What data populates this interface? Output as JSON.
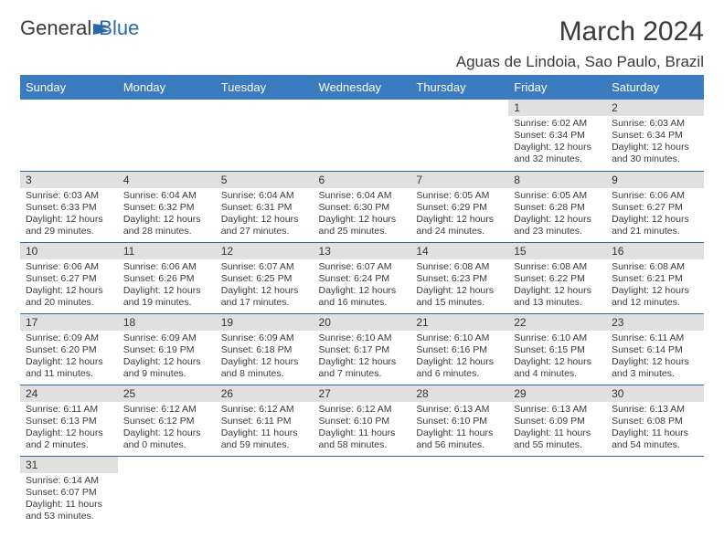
{
  "logo": {
    "general": "General",
    "blue": "Blue"
  },
  "title": "March 2024",
  "location": "Aguas de Lindoia, Sao Paulo, Brazil",
  "colors": {
    "header_bg": "#3b7bbf",
    "header_text": "#ffffff",
    "daybar_bg": "#e0e0e0",
    "border": "#2f6aa8",
    "logo_blue": "#2a6aa8",
    "text": "#3a3a3a"
  },
  "weekdays": [
    "Sunday",
    "Monday",
    "Tuesday",
    "Wednesday",
    "Thursday",
    "Friday",
    "Saturday"
  ],
  "weeks": [
    [
      null,
      null,
      null,
      null,
      null,
      {
        "n": "1",
        "sunrise": "Sunrise: 6:02 AM",
        "sunset": "Sunset: 6:34 PM",
        "daylight1": "Daylight: 12 hours",
        "daylight2": "and 32 minutes."
      },
      {
        "n": "2",
        "sunrise": "Sunrise: 6:03 AM",
        "sunset": "Sunset: 6:34 PM",
        "daylight1": "Daylight: 12 hours",
        "daylight2": "and 30 minutes."
      }
    ],
    [
      {
        "n": "3",
        "sunrise": "Sunrise: 6:03 AM",
        "sunset": "Sunset: 6:33 PM",
        "daylight1": "Daylight: 12 hours",
        "daylight2": "and 29 minutes."
      },
      {
        "n": "4",
        "sunrise": "Sunrise: 6:04 AM",
        "sunset": "Sunset: 6:32 PM",
        "daylight1": "Daylight: 12 hours",
        "daylight2": "and 28 minutes."
      },
      {
        "n": "5",
        "sunrise": "Sunrise: 6:04 AM",
        "sunset": "Sunset: 6:31 PM",
        "daylight1": "Daylight: 12 hours",
        "daylight2": "and 27 minutes."
      },
      {
        "n": "6",
        "sunrise": "Sunrise: 6:04 AM",
        "sunset": "Sunset: 6:30 PM",
        "daylight1": "Daylight: 12 hours",
        "daylight2": "and 25 minutes."
      },
      {
        "n": "7",
        "sunrise": "Sunrise: 6:05 AM",
        "sunset": "Sunset: 6:29 PM",
        "daylight1": "Daylight: 12 hours",
        "daylight2": "and 24 minutes."
      },
      {
        "n": "8",
        "sunrise": "Sunrise: 6:05 AM",
        "sunset": "Sunset: 6:28 PM",
        "daylight1": "Daylight: 12 hours",
        "daylight2": "and 23 minutes."
      },
      {
        "n": "9",
        "sunrise": "Sunrise: 6:06 AM",
        "sunset": "Sunset: 6:27 PM",
        "daylight1": "Daylight: 12 hours",
        "daylight2": "and 21 minutes."
      }
    ],
    [
      {
        "n": "10",
        "sunrise": "Sunrise: 6:06 AM",
        "sunset": "Sunset: 6:27 PM",
        "daylight1": "Daylight: 12 hours",
        "daylight2": "and 20 minutes."
      },
      {
        "n": "11",
        "sunrise": "Sunrise: 6:06 AM",
        "sunset": "Sunset: 6:26 PM",
        "daylight1": "Daylight: 12 hours",
        "daylight2": "and 19 minutes."
      },
      {
        "n": "12",
        "sunrise": "Sunrise: 6:07 AM",
        "sunset": "Sunset: 6:25 PM",
        "daylight1": "Daylight: 12 hours",
        "daylight2": "and 17 minutes."
      },
      {
        "n": "13",
        "sunrise": "Sunrise: 6:07 AM",
        "sunset": "Sunset: 6:24 PM",
        "daylight1": "Daylight: 12 hours",
        "daylight2": "and 16 minutes."
      },
      {
        "n": "14",
        "sunrise": "Sunrise: 6:08 AM",
        "sunset": "Sunset: 6:23 PM",
        "daylight1": "Daylight: 12 hours",
        "daylight2": "and 15 minutes."
      },
      {
        "n": "15",
        "sunrise": "Sunrise: 6:08 AM",
        "sunset": "Sunset: 6:22 PM",
        "daylight1": "Daylight: 12 hours",
        "daylight2": "and 13 minutes."
      },
      {
        "n": "16",
        "sunrise": "Sunrise: 6:08 AM",
        "sunset": "Sunset: 6:21 PM",
        "daylight1": "Daylight: 12 hours",
        "daylight2": "and 12 minutes."
      }
    ],
    [
      {
        "n": "17",
        "sunrise": "Sunrise: 6:09 AM",
        "sunset": "Sunset: 6:20 PM",
        "daylight1": "Daylight: 12 hours",
        "daylight2": "and 11 minutes."
      },
      {
        "n": "18",
        "sunrise": "Sunrise: 6:09 AM",
        "sunset": "Sunset: 6:19 PM",
        "daylight1": "Daylight: 12 hours",
        "daylight2": "and 9 minutes."
      },
      {
        "n": "19",
        "sunrise": "Sunrise: 6:09 AM",
        "sunset": "Sunset: 6:18 PM",
        "daylight1": "Daylight: 12 hours",
        "daylight2": "and 8 minutes."
      },
      {
        "n": "20",
        "sunrise": "Sunrise: 6:10 AM",
        "sunset": "Sunset: 6:17 PM",
        "daylight1": "Daylight: 12 hours",
        "daylight2": "and 7 minutes."
      },
      {
        "n": "21",
        "sunrise": "Sunrise: 6:10 AM",
        "sunset": "Sunset: 6:16 PM",
        "daylight1": "Daylight: 12 hours",
        "daylight2": "and 6 minutes."
      },
      {
        "n": "22",
        "sunrise": "Sunrise: 6:10 AM",
        "sunset": "Sunset: 6:15 PM",
        "daylight1": "Daylight: 12 hours",
        "daylight2": "and 4 minutes."
      },
      {
        "n": "23",
        "sunrise": "Sunrise: 6:11 AM",
        "sunset": "Sunset: 6:14 PM",
        "daylight1": "Daylight: 12 hours",
        "daylight2": "and 3 minutes."
      }
    ],
    [
      {
        "n": "24",
        "sunrise": "Sunrise: 6:11 AM",
        "sunset": "Sunset: 6:13 PM",
        "daylight1": "Daylight: 12 hours",
        "daylight2": "and 2 minutes."
      },
      {
        "n": "25",
        "sunrise": "Sunrise: 6:12 AM",
        "sunset": "Sunset: 6:12 PM",
        "daylight1": "Daylight: 12 hours",
        "daylight2": "and 0 minutes."
      },
      {
        "n": "26",
        "sunrise": "Sunrise: 6:12 AM",
        "sunset": "Sunset: 6:11 PM",
        "daylight1": "Daylight: 11 hours",
        "daylight2": "and 59 minutes."
      },
      {
        "n": "27",
        "sunrise": "Sunrise: 6:12 AM",
        "sunset": "Sunset: 6:10 PM",
        "daylight1": "Daylight: 11 hours",
        "daylight2": "and 58 minutes."
      },
      {
        "n": "28",
        "sunrise": "Sunrise: 6:13 AM",
        "sunset": "Sunset: 6:10 PM",
        "daylight1": "Daylight: 11 hours",
        "daylight2": "and 56 minutes."
      },
      {
        "n": "29",
        "sunrise": "Sunrise: 6:13 AM",
        "sunset": "Sunset: 6:09 PM",
        "daylight1": "Daylight: 11 hours",
        "daylight2": "and 55 minutes."
      },
      {
        "n": "30",
        "sunrise": "Sunrise: 6:13 AM",
        "sunset": "Sunset: 6:08 PM",
        "daylight1": "Daylight: 11 hours",
        "daylight2": "and 54 minutes."
      }
    ],
    [
      {
        "n": "31",
        "sunrise": "Sunrise: 6:14 AM",
        "sunset": "Sunset: 6:07 PM",
        "daylight1": "Daylight: 11 hours",
        "daylight2": "and 53 minutes."
      },
      null,
      null,
      null,
      null,
      null,
      null
    ]
  ]
}
